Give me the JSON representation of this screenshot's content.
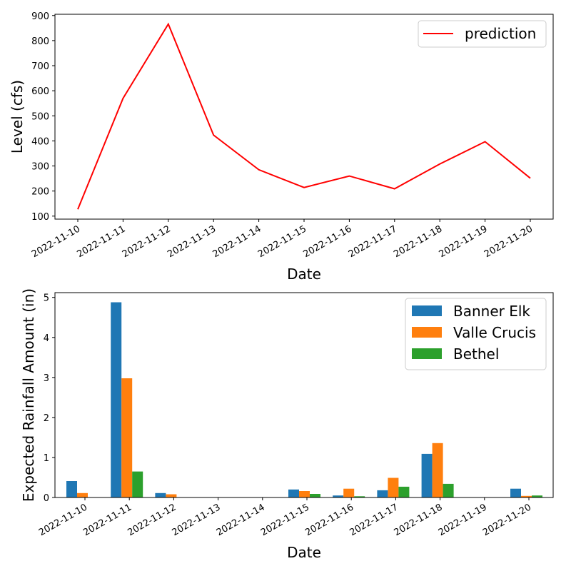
{
  "chart_data": [
    {
      "type": "line",
      "xlabel": "Date",
      "ylabel": "Level (cfs)",
      "x": [
        "2022-11-10",
        "2022-11-11",
        "2022-11-12",
        "2022-11-13",
        "2022-11-14",
        "2022-11-15",
        "2022-11-16",
        "2022-11-17",
        "2022-11-18",
        "2022-11-19",
        "2022-11-20"
      ],
      "series": [
        {
          "name": "prediction",
          "color": "#ff0000",
          "values": [
            127,
            570,
            866,
            423,
            285,
            214,
            260,
            209,
            308,
            397,
            251
          ]
        }
      ],
      "yticks": [
        100,
        200,
        300,
        400,
        500,
        600,
        700,
        800,
        900
      ],
      "ylim": [
        88,
        905
      ],
      "legend": "upper-right",
      "grid": false
    },
    {
      "type": "bar",
      "xlabel": "Date",
      "ylabel": "Expected Rainfall Amount (in)",
      "categories": [
        "2022-11-10",
        "2022-11-11",
        "2022-11-12",
        "2022-11-13",
        "2022-11-14",
        "2022-11-15",
        "2022-11-16",
        "2022-11-17",
        "2022-11-18",
        "2022-11-19",
        "2022-11-20"
      ],
      "series": [
        {
          "name": "Banner Elk",
          "color": "#1f77b4",
          "values": [
            0.41,
            4.88,
            0.11,
            0,
            0,
            0.2,
            0.05,
            0.18,
            1.09,
            0,
            0.22
          ]
        },
        {
          "name": "Valle Crucis",
          "color": "#ff7f0e",
          "values": [
            0.11,
            2.98,
            0.08,
            0,
            0,
            0.16,
            0.22,
            0.49,
            1.36,
            0,
            0.04
          ]
        },
        {
          "name": "Bethel",
          "color": "#2ca02c",
          "values": [
            0,
            0.65,
            0,
            0,
            0,
            0.09,
            0.03,
            0.27,
            0.34,
            0,
            0.05
          ]
        }
      ],
      "yticks": [
        0,
        1,
        2,
        3,
        4,
        5
      ],
      "ylim": [
        0,
        5.12
      ],
      "legend": "upper-right",
      "grid": false
    }
  ]
}
